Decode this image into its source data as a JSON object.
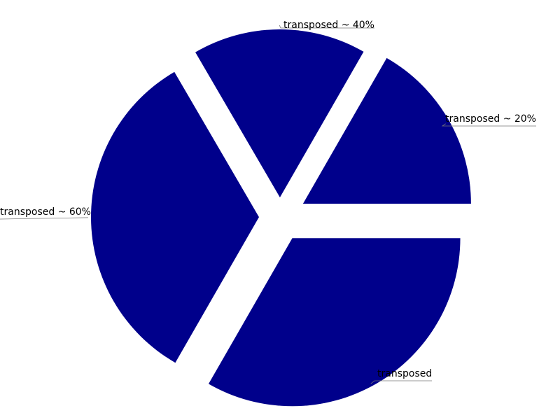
{
  "chart_data": {
    "type": "pie",
    "title": "",
    "color": "#00008b",
    "slices": [
      {
        "label": "transposed ~ 20%",
        "value": 16.7
      },
      {
        "label": "transposed ~ 40%",
        "value": 16.7
      },
      {
        "label": "transposed ~ 60%",
        "value": 33.3
      },
      {
        "label": "transposed",
        "value": 33.3
      }
    ]
  }
}
